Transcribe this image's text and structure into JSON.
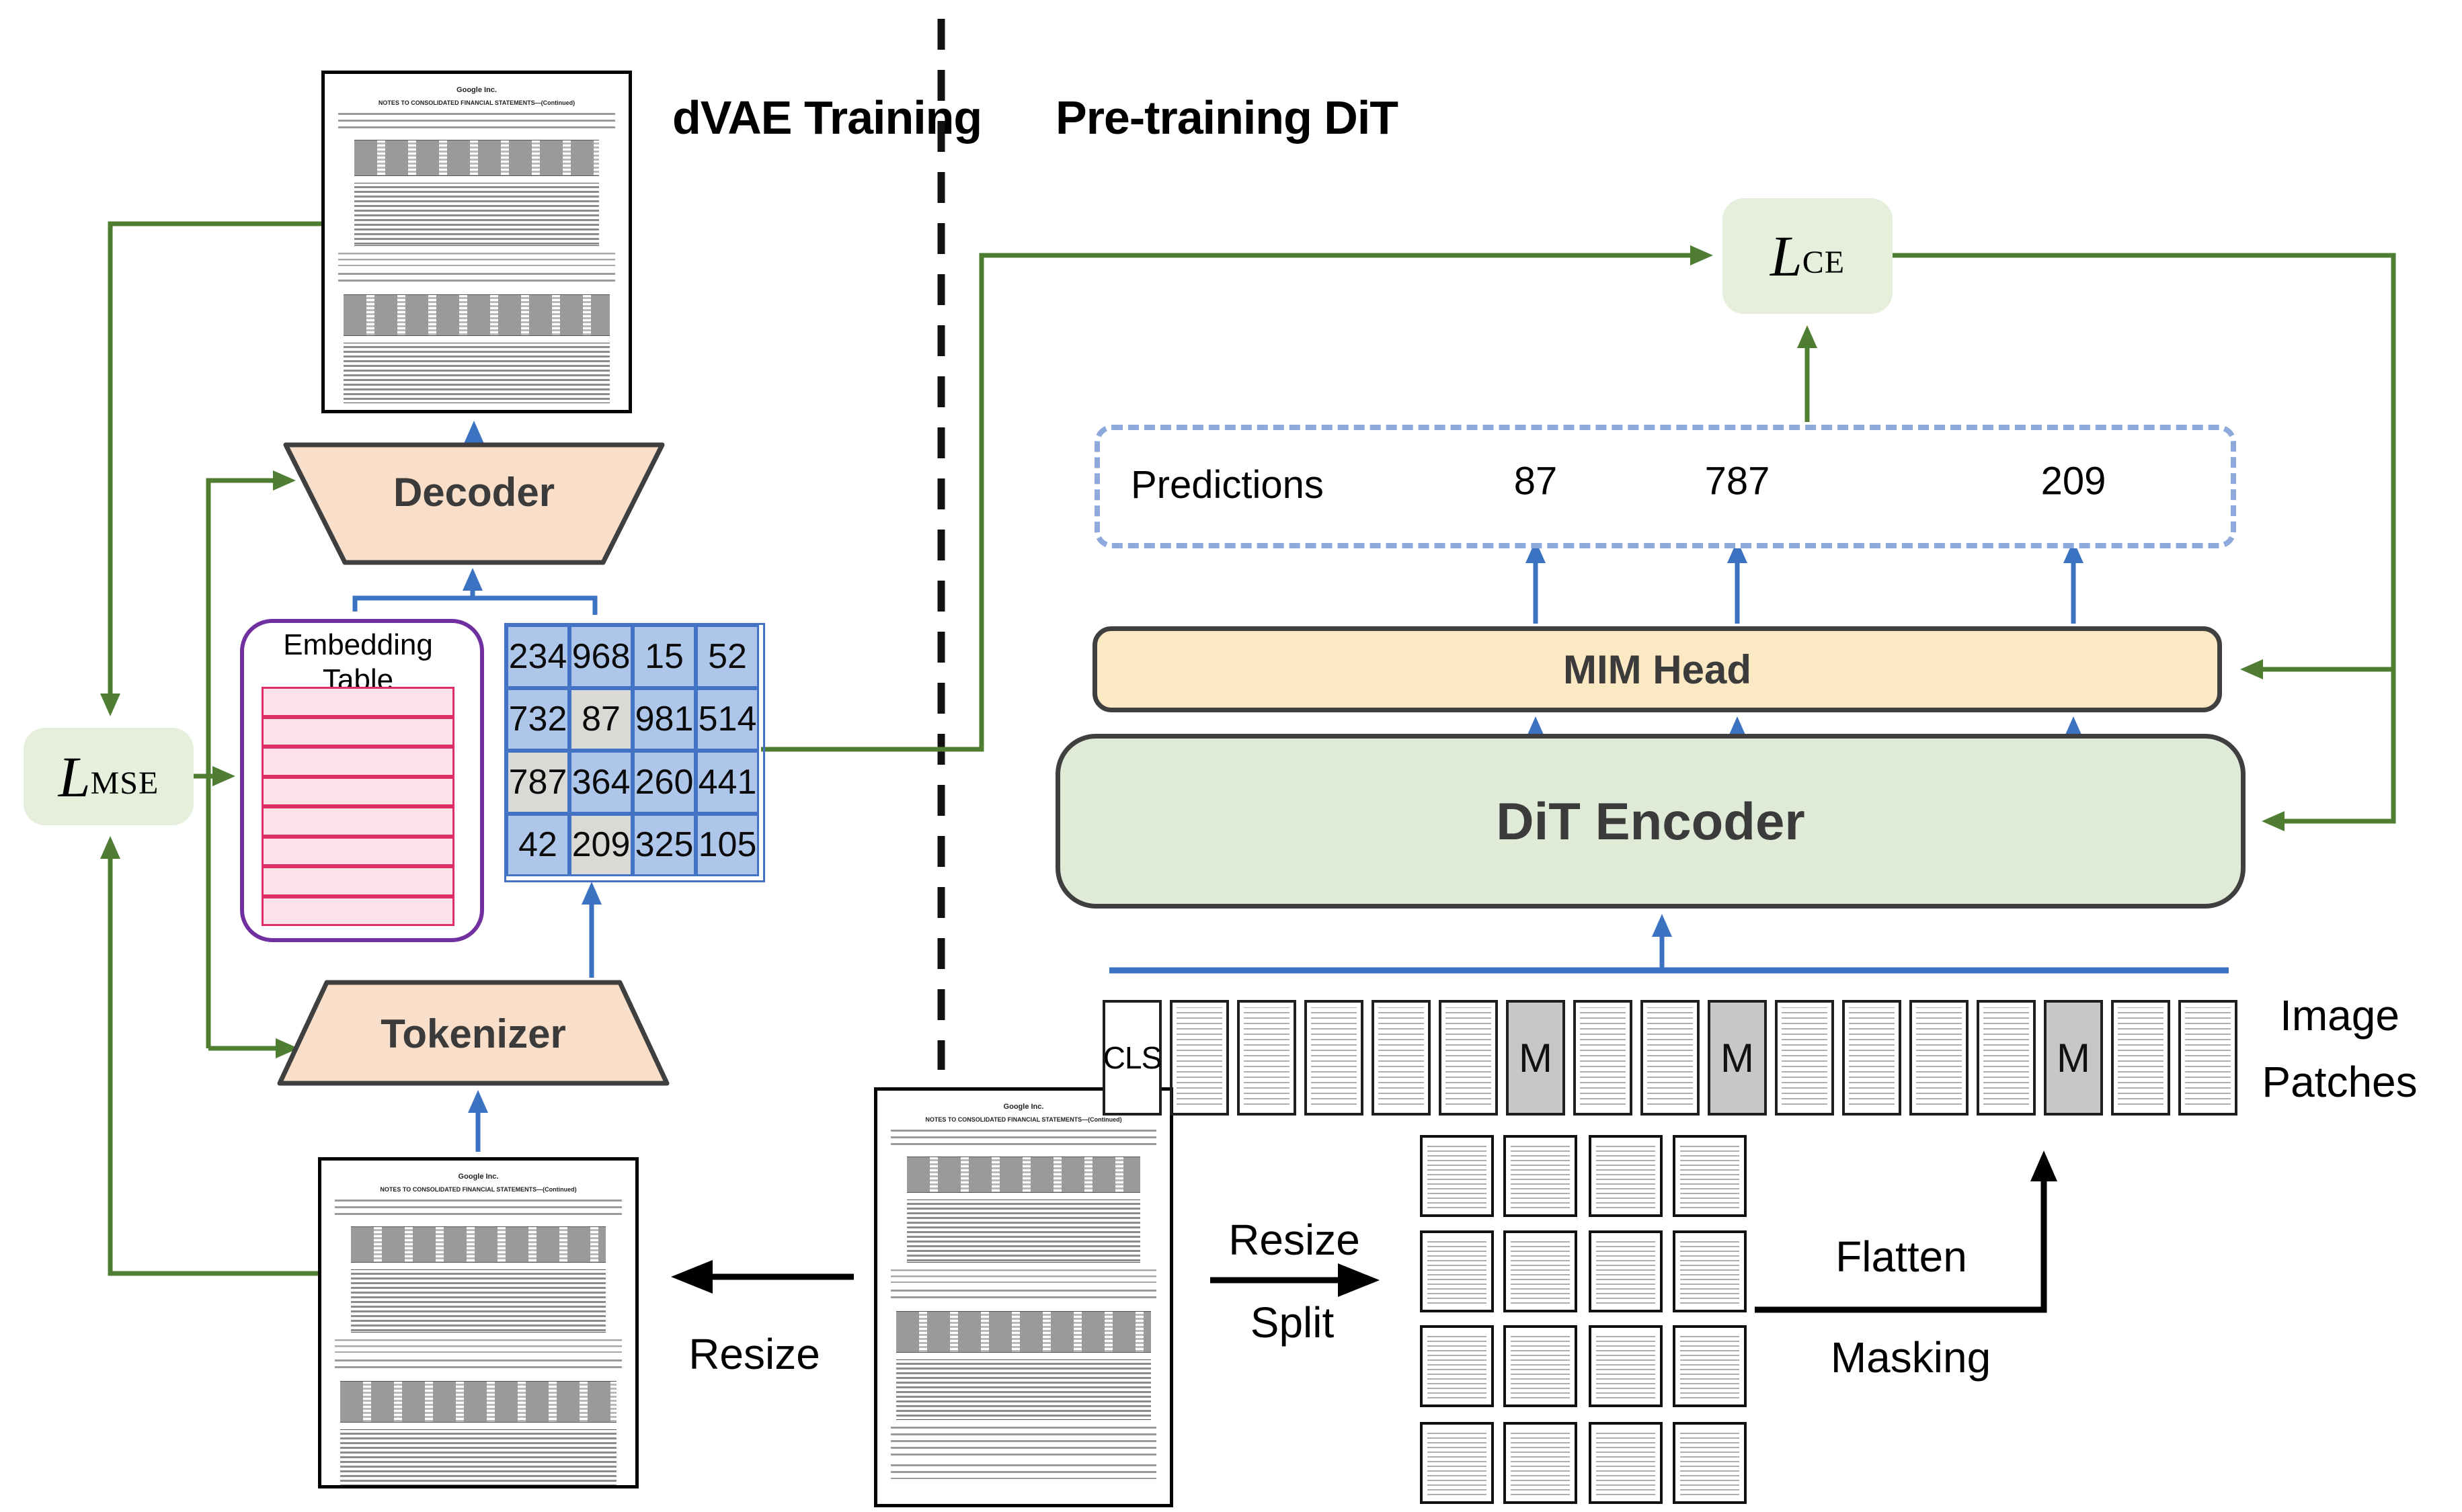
{
  "titles": {
    "left": "dVAE Training",
    "right": "Pre-training DiT"
  },
  "losses": {
    "mse": {
      "base": "L",
      "sub": "MSE"
    },
    "ce": {
      "base": "L",
      "sub": "CE"
    }
  },
  "decoder_label": "Decoder",
  "tokenizer_label": "Tokenizer",
  "embedding_table": {
    "label_line1": "Embedding",
    "label_line2": "Table",
    "row_count": 8
  },
  "token_grid": {
    "values": [
      [
        "234",
        "968",
        "15",
        "52"
      ],
      [
        "732",
        "87",
        "981",
        "514"
      ],
      [
        "787",
        "364",
        "260",
        "441"
      ],
      [
        "42",
        "209",
        "325",
        "105"
      ]
    ],
    "masked": [
      [
        0,
        0,
        0,
        0
      ],
      [
        0,
        1,
        0,
        0
      ],
      [
        1,
        0,
        0,
        0
      ],
      [
        0,
        1,
        0,
        0
      ]
    ]
  },
  "predictions": {
    "label": "Predictions",
    "values": [
      "87",
      "787",
      "209"
    ]
  },
  "mim_head_label": "MIM Head",
  "dit_encoder_label": "DiT Encoder",
  "patches": {
    "cls_text": "CLS",
    "mask_text": "M",
    "sequence": [
      "cls",
      "doc",
      "doc",
      "doc",
      "doc",
      "doc",
      "mask",
      "doc",
      "doc",
      "mask",
      "doc",
      "doc",
      "doc",
      "doc",
      "mask",
      "doc",
      "doc"
    ],
    "label_line1": "Image",
    "label_line2": "Patches"
  },
  "flow_labels": {
    "resize_left": "Resize",
    "resize_right": "Resize",
    "split": "Split",
    "flatten": "Flatten",
    "masking": "Masking"
  },
  "document": {
    "header": "Google Inc.",
    "subheader": "NOTES TO CONSOLIDATED FINANCIAL STATEMENTS—(Continued)"
  },
  "colors": {
    "green_wire": "#4F7E32",
    "blue_wire": "#3B72C1",
    "loss_bg": "#E5EFDC",
    "trapezoid_fill": "#F9DFC9",
    "shape_border": "#3F3F3F",
    "grid_cell_blue": "#AEC6E9",
    "grid_cell_masked": "#D9D9D5",
    "grid_border": "#4472C4",
    "embedding_border": "#7030A0",
    "embedding_row_fill": "#FCE1E9",
    "embedding_row_border": "#DD2E66",
    "mim_fill": "#FBE9C4",
    "dit_fill": "#DFEBD7",
    "prediction_dash": "#8EA9DB",
    "mask_patch_fill": "#C7C7C7"
  }
}
